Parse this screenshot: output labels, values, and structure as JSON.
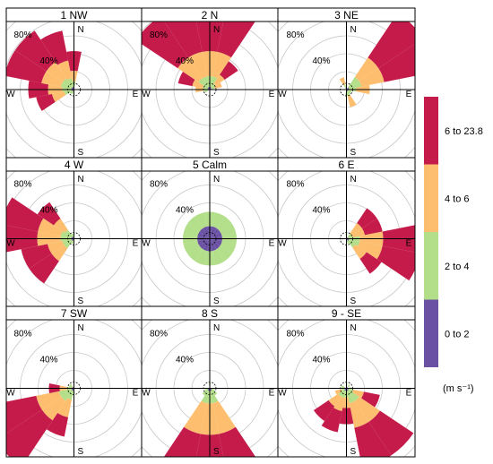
{
  "chart_data": {
    "type": "polar-bar",
    "chart_kind": "wind rose",
    "grid": true,
    "legend_position": "right",
    "radial_unit": "%",
    "radial_max": 100,
    "radial_ticks": [
      20,
      40,
      60,
      80,
      100
    ],
    "radial_labels": [
      "40%",
      "80%"
    ],
    "direction_labels": [
      "N",
      "E",
      "S",
      "W"
    ],
    "sectors": [
      "N",
      "NNE",
      "NE",
      "ENE",
      "E",
      "ESE",
      "SE",
      "SSE",
      "S",
      "SSW",
      "SW",
      "WSW",
      "W",
      "WNW",
      "NW",
      "NNW"
    ],
    "legend": {
      "unit": "(m s⁻¹)",
      "bins": [
        {
          "label": "0 to 2",
          "color": "#6a51a3"
        },
        {
          "label": "2 to 4",
          "color": "#b3de8a"
        },
        {
          "label": "4 to 6",
          "color": "#fdbf6f"
        },
        {
          "label": "6 to 23.8",
          "color": "#c51b4a"
        }
      ]
    },
    "panels": [
      {
        "title": "1 NW",
        "values": [
          [
            2,
            7,
            12,
            22
          ],
          [
            0,
            0,
            0,
            0
          ],
          [
            0,
            0,
            0,
            0
          ],
          [
            0,
            0,
            0,
            0
          ],
          [
            0,
            0,
            0,
            0
          ],
          [
            0,
            0,
            0,
            0
          ],
          [
            0,
            0,
            0,
            0
          ],
          [
            0,
            0,
            0,
            0
          ],
          [
            2,
            3,
            0,
            0
          ],
          [
            2,
            3,
            0,
            0
          ],
          [
            2,
            4,
            0,
            0
          ],
          [
            3,
            8,
            14,
            18
          ],
          [
            3,
            10,
            16,
            22
          ],
          [
            3,
            12,
            22,
            42
          ],
          [
            3,
            12,
            22,
            42
          ],
          [
            3,
            10,
            20,
            34
          ]
        ]
      },
      {
        "title": "2 N",
        "values": [
          [
            3,
            12,
            28,
            56
          ],
          [
            3,
            12,
            28,
            56
          ],
          [
            2,
            6,
            12,
            18
          ],
          [
            2,
            4,
            8,
            0
          ],
          [
            0,
            0,
            0,
            0
          ],
          [
            0,
            0,
            0,
            0
          ],
          [
            0,
            0,
            0,
            0
          ],
          [
            0,
            0,
            0,
            0
          ],
          [
            0,
            0,
            0,
            0
          ],
          [
            0,
            0,
            0,
            0
          ],
          [
            0,
            0,
            0,
            0
          ],
          [
            2,
            4,
            0,
            0
          ],
          [
            2,
            5,
            9,
            0
          ],
          [
            2,
            6,
            12,
            16
          ],
          [
            3,
            12,
            28,
            56
          ],
          [
            3,
            12,
            28,
            56
          ]
        ]
      },
      {
        "title": "3 NE",
        "values": [
          [
            0,
            0,
            0,
            0
          ],
          [
            0,
            0,
            0,
            0
          ],
          [
            3,
            14,
            26,
            60
          ],
          [
            3,
            14,
            26,
            60
          ],
          [
            3,
            8,
            15,
            0
          ],
          [
            2,
            4,
            0,
            0
          ],
          [
            2,
            4,
            0,
            0
          ],
          [
            2,
            5,
            13,
            0
          ],
          [
            2,
            5,
            0,
            0
          ],
          [
            0,
            0,
            0,
            0
          ],
          [
            0,
            0,
            0,
            0
          ],
          [
            0,
            0,
            0,
            0
          ],
          [
            0,
            0,
            0,
            0
          ],
          [
            0,
            0,
            0,
            0
          ],
          [
            0,
            0,
            0,
            0
          ],
          [
            2,
            4,
            8,
            0
          ]
        ]
      },
      {
        "title": "4 W",
        "values": [
          [
            2,
            4,
            0,
            0
          ],
          [
            0,
            0,
            0,
            0
          ],
          [
            0,
            0,
            0,
            0
          ],
          [
            0,
            0,
            0,
            0
          ],
          [
            0,
            0,
            0,
            0
          ],
          [
            0,
            0,
            0,
            0
          ],
          [
            0,
            0,
            0,
            0
          ],
          [
            0,
            0,
            0,
            0
          ],
          [
            0,
            0,
            0,
            0
          ],
          [
            2,
            4,
            0,
            0
          ],
          [
            3,
            10,
            17,
            30
          ],
          [
            3,
            10,
            17,
            30
          ],
          [
            3,
            12,
            26,
            42
          ],
          [
            3,
            12,
            26,
            42
          ],
          [
            3,
            9,
            15,
            22
          ],
          [
            2,
            4,
            0,
            0
          ]
        ]
      },
      {
        "title": "5 Calm",
        "values": [
          [
            14,
            16,
            0,
            0
          ],
          [
            14,
            16,
            0,
            0
          ],
          [
            14,
            16,
            0,
            0
          ],
          [
            14,
            16,
            0,
            0
          ],
          [
            14,
            16,
            0,
            0
          ],
          [
            14,
            16,
            0,
            0
          ],
          [
            14,
            16,
            0,
            0
          ],
          [
            14,
            16,
            0,
            0
          ],
          [
            14,
            16,
            0,
            0
          ],
          [
            14,
            16,
            0,
            0
          ],
          [
            14,
            16,
            0,
            0
          ],
          [
            14,
            16,
            0,
            0
          ],
          [
            14,
            16,
            0,
            0
          ],
          [
            14,
            16,
            0,
            0
          ],
          [
            14,
            16,
            0,
            0
          ],
          [
            14,
            16,
            0,
            0
          ]
        ]
      },
      {
        "title": "6 E",
        "values": [
          [
            2,
            4,
            0,
            0
          ],
          [
            0,
            0,
            0,
            0
          ],
          [
            2,
            5,
            14,
            20
          ],
          [
            2,
            5,
            14,
            20
          ],
          [
            3,
            12,
            26,
            43
          ],
          [
            3,
            12,
            26,
            43
          ],
          [
            3,
            9,
            15,
            20
          ],
          [
            2,
            4,
            0,
            0
          ],
          [
            0,
            0,
            0,
            0
          ],
          [
            0,
            0,
            0,
            0
          ],
          [
            0,
            0,
            0,
            0
          ],
          [
            0,
            0,
            0,
            0
          ],
          [
            2,
            4,
            0,
            0
          ],
          [
            0,
            0,
            0,
            0
          ],
          [
            0,
            0,
            0,
            0
          ],
          [
            0,
            0,
            0,
            0
          ]
        ]
      },
      {
        "title": "7 SW",
        "values": [
          [
            0,
            0,
            0,
            0
          ],
          [
            0,
            0,
            0,
            0
          ],
          [
            0,
            0,
            0,
            0
          ],
          [
            0,
            0,
            0,
            0
          ],
          [
            0,
            0,
            0,
            0
          ],
          [
            0,
            0,
            0,
            0
          ],
          [
            0,
            0,
            0,
            0
          ],
          [
            0,
            0,
            0,
            0
          ],
          [
            2,
            4,
            0,
            0
          ],
          [
            3,
            10,
            20,
            22
          ],
          [
            3,
            14,
            26,
            62
          ],
          [
            3,
            14,
            26,
            62
          ],
          [
            3,
            5,
            8,
            12
          ],
          [
            2,
            4,
            0,
            0
          ],
          [
            2,
            4,
            0,
            0
          ],
          [
            0,
            0,
            0,
            0
          ]
        ]
      },
      {
        "title": "8 S",
        "values": [
          [
            2,
            4,
            0,
            0
          ],
          [
            0,
            0,
            0,
            0
          ],
          [
            0,
            0,
            0,
            0
          ],
          [
            0,
            0,
            0,
            0
          ],
          [
            0,
            0,
            0,
            0
          ],
          [
            2,
            4,
            0,
            0
          ],
          [
            3,
            7,
            0,
            0
          ],
          [
            3,
            14,
            35,
            57
          ],
          [
            3,
            14,
            35,
            57
          ],
          [
            3,
            14,
            35,
            57
          ],
          [
            3,
            7,
            0,
            0
          ],
          [
            2,
            4,
            0,
            0
          ],
          [
            0,
            0,
            0,
            0
          ],
          [
            0,
            0,
            0,
            0
          ],
          [
            0,
            0,
            0,
            0
          ],
          [
            0,
            0,
            0,
            0
          ]
        ]
      },
      {
        "title": "9 - SE",
        "values": [
          [
            2,
            4,
            0,
            0
          ],
          [
            0,
            0,
            0,
            0
          ],
          [
            2,
            3,
            0,
            0
          ],
          [
            0,
            0,
            0,
            0
          ],
          [
            2,
            4,
            0,
            0
          ],
          [
            2,
            6,
            12,
            18
          ],
          [
            3,
            14,
            28,
            45
          ],
          [
            3,
            14,
            28,
            45
          ],
          [
            3,
            7,
            12,
            18
          ],
          [
            3,
            8,
            15,
            24
          ],
          [
            3,
            8,
            13,
            20
          ],
          [
            2,
            4,
            7,
            0
          ],
          [
            2,
            4,
            0,
            0
          ],
          [
            2,
            4,
            0,
            0
          ],
          [
            0,
            0,
            0,
            0
          ],
          [
            0,
            0,
            0,
            0
          ]
        ]
      }
    ]
  }
}
